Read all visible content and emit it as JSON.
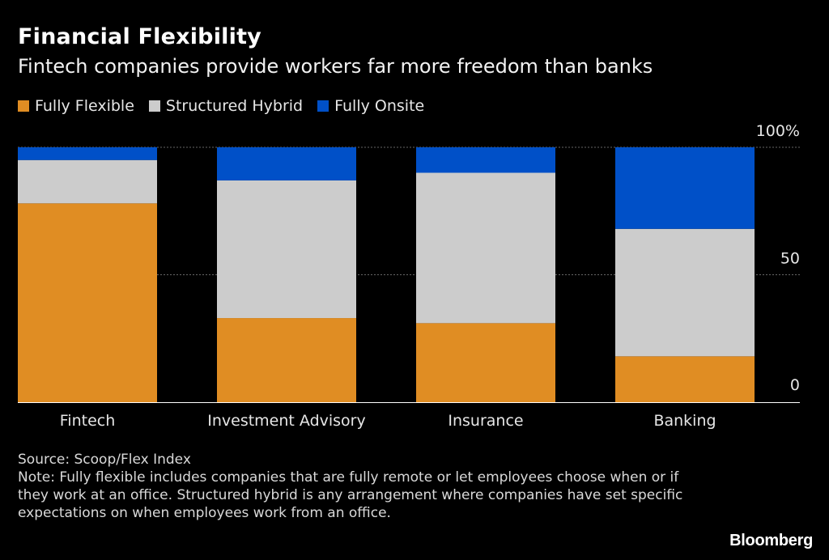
{
  "title": "Financial Flexibility",
  "subtitle": "Fintech companies provide workers far more freedom than banks",
  "colors": {
    "flexible": "#e08d23",
    "hybrid": "#cccccc",
    "onsite": "#0050c8",
    "background": "#000000",
    "grid": "#666666"
  },
  "chart_data": {
    "type": "bar",
    "stacked": true,
    "categories": [
      "Fintech",
      "Investment Advisory",
      "Insurance",
      "Banking"
    ],
    "series": [
      {
        "name": "Fully Flexible",
        "values": [
          78,
          33,
          31,
          18
        ]
      },
      {
        "name": "Structured Hybrid",
        "values": [
          17,
          54,
          59,
          50
        ]
      },
      {
        "name": "Fully Onsite",
        "values": [
          5,
          13,
          10,
          32
        ]
      }
    ],
    "y_ticks": [
      "0",
      "50",
      "100%"
    ],
    "ylim": [
      0,
      100
    ],
    "grid": true,
    "legend": "top-left"
  },
  "footer": {
    "source": "Source: Scoop/Flex Index",
    "note": "Note: Fully flexible includes companies that are fully remote or let employees choose when or if they work at an office. Structured hybrid is any arrangement where companies have set specific expectations on when employees work from an office."
  },
  "brand": "Bloomberg"
}
